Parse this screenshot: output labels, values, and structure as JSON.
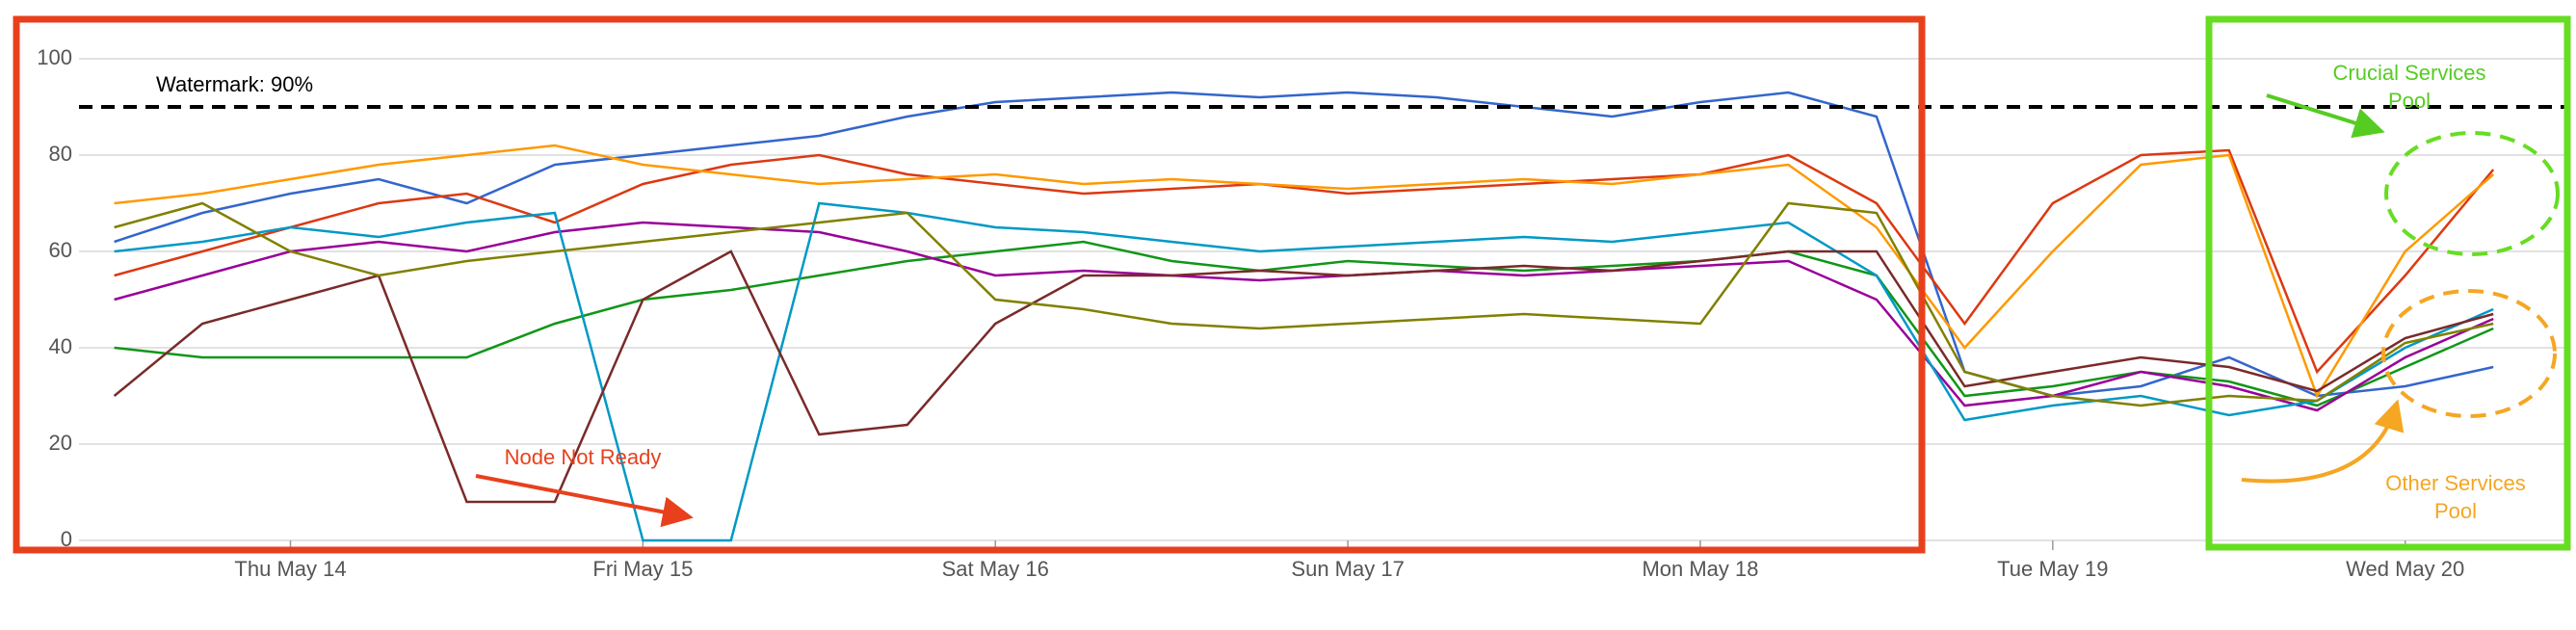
{
  "chart_data": {
    "type": "line",
    "ylim": [
      0,
      100
    ],
    "yticks": [
      0,
      20,
      40,
      60,
      80,
      100
    ],
    "xlim": [
      0.4,
      7.46
    ],
    "xticks": [
      {
        "value": 1,
        "label": "Thu May 14"
      },
      {
        "value": 2,
        "label": "Fri May 15"
      },
      {
        "value": 3,
        "label": "Sat May 16"
      },
      {
        "value": 4,
        "label": "Sun May 17"
      },
      {
        "value": 5,
        "label": "Mon May 18"
      },
      {
        "value": 6,
        "label": "Tue May 19"
      },
      {
        "value": 7,
        "label": "Wed May 20"
      }
    ],
    "grid": true,
    "watermark": 90,
    "watermark_label": "Watermark: 90%",
    "annotations": {
      "node_not_ready": "Node Not Ready",
      "crucial": [
        "Crucial Services",
        "Pool"
      ],
      "other": [
        "Other Services",
        "Pool"
      ]
    },
    "x": [
      0.5,
      0.75,
      1,
      1.25,
      1.5,
      1.75,
      2,
      2.25,
      2.5,
      2.75,
      3,
      3.25,
      3.5,
      3.75,
      4,
      4.25,
      4.5,
      4.75,
      5,
      5.25,
      5.5,
      5.75,
      6,
      6.25,
      6.5,
      6.75,
      7,
      7.25
    ],
    "series": [
      {
        "color": "#3366cc",
        "values": [
          62,
          68,
          72,
          75,
          70,
          78,
          80,
          82,
          84,
          88,
          91,
          92,
          93,
          92,
          93,
          92,
          90,
          88,
          91,
          93,
          88,
          35,
          30,
          32,
          38,
          30,
          32,
          36
        ]
      },
      {
        "color": "#dc3912",
        "values": [
          55,
          60,
          65,
          70,
          72,
          66,
          74,
          78,
          80,
          76,
          74,
          72,
          73,
          74,
          72,
          73,
          74,
          75,
          76,
          80,
          70,
          45,
          70,
          80,
          81,
          35,
          55,
          77
        ]
      },
      {
        "color": "#ff9900",
        "values": [
          70,
          72,
          75,
          78,
          80,
          82,
          78,
          76,
          74,
          75,
          76,
          74,
          75,
          74,
          73,
          74,
          75,
          74,
          76,
          78,
          65,
          40,
          60,
          78,
          80,
          30,
          60,
          76
        ]
      },
      {
        "color": "#109618",
        "values": [
          40,
          38,
          38,
          38,
          38,
          45,
          50,
          52,
          55,
          58,
          60,
          62,
          58,
          56,
          58,
          57,
          56,
          57,
          58,
          60,
          55,
          30,
          32,
          35,
          33,
          28,
          36,
          44
        ]
      },
      {
        "color": "#990099",
        "values": [
          50,
          55,
          60,
          62,
          60,
          64,
          66,
          65,
          64,
          60,
          55,
          56,
          55,
          54,
          55,
          56,
          55,
          56,
          57,
          58,
          50,
          28,
          30,
          35,
          32,
          27,
          38,
          46
        ]
      },
      {
        "color": "#0099c6",
        "values": [
          60,
          62,
          65,
          63,
          66,
          68,
          0,
          0,
          70,
          68,
          65,
          64,
          62,
          60,
          61,
          62,
          63,
          62,
          64,
          66,
          55,
          25,
          28,
          30,
          26,
          29,
          40,
          48
        ]
      },
      {
        "color": "#7a2a2a",
        "values": [
          30,
          45,
          50,
          55,
          8,
          8,
          50,
          60,
          22,
          24,
          45,
          55,
          55,
          56,
          55,
          56,
          57,
          56,
          58,
          60,
          60,
          32,
          35,
          38,
          36,
          31,
          42,
          47
        ]
      },
      {
        "color": "#808000",
        "values": [
          65,
          70,
          60,
          55,
          58,
          60,
          62,
          64,
          66,
          68,
          50,
          48,
          45,
          44,
          45,
          46,
          47,
          46,
          45,
          70,
          68,
          35,
          30,
          28,
          30,
          29,
          41,
          45
        ]
      }
    ]
  }
}
